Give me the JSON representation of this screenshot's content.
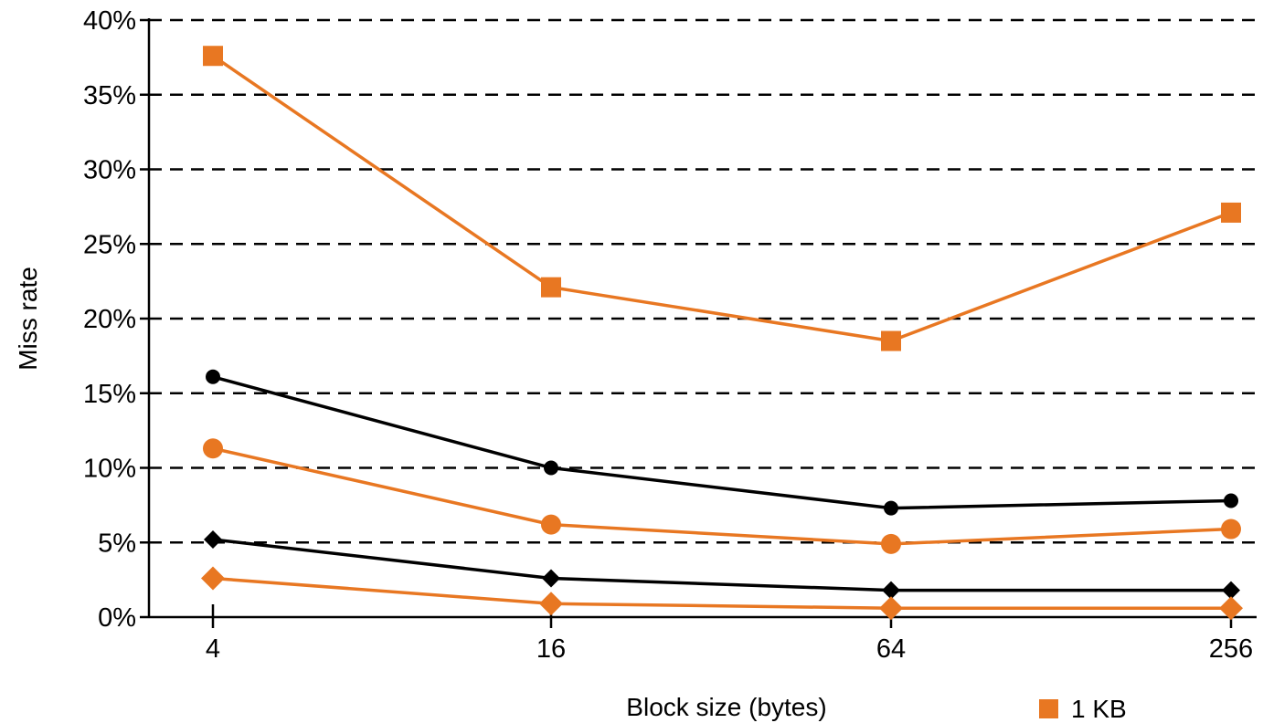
{
  "chart_data": {
    "type": "line",
    "x": [
      4,
      16,
      64,
      256
    ],
    "x_tick_labels": [
      "4",
      "16",
      "64",
      "256"
    ],
    "x_scale": "log",
    "xlabel": "Block size (bytes)",
    "ylabel": "Miss rate",
    "ylim": [
      0,
      0.4
    ],
    "y_tick_labels": [
      "0%",
      "5%",
      "10%",
      "15%",
      "20%",
      "25%",
      "30%",
      "35%",
      "40%"
    ],
    "grid": "horizontal dashed",
    "series": [
      {
        "name": "1 KB",
        "marker": "square",
        "color": "#E87722",
        "values": [
          0.376,
          0.221,
          0.185,
          0.271
        ]
      },
      {
        "name": "",
        "marker": "small-circle",
        "color": "#000000",
        "values": [
          0.161,
          0.1,
          0.073,
          0.078
        ]
      },
      {
        "name": "",
        "marker": "circle",
        "color": "#E87722",
        "values": [
          0.113,
          0.062,
          0.049,
          0.059
        ]
      },
      {
        "name": "",
        "marker": "small-diamond",
        "color": "#000000",
        "values": [
          0.052,
          0.026,
          0.018,
          0.018
        ]
      },
      {
        "name": "",
        "marker": "diamond",
        "color": "#E87722",
        "values": [
          0.026,
          0.009,
          0.006,
          0.006
        ]
      }
    ],
    "legend": {
      "placement": "bottom-right",
      "entries": [
        "1 KB"
      ]
    }
  }
}
